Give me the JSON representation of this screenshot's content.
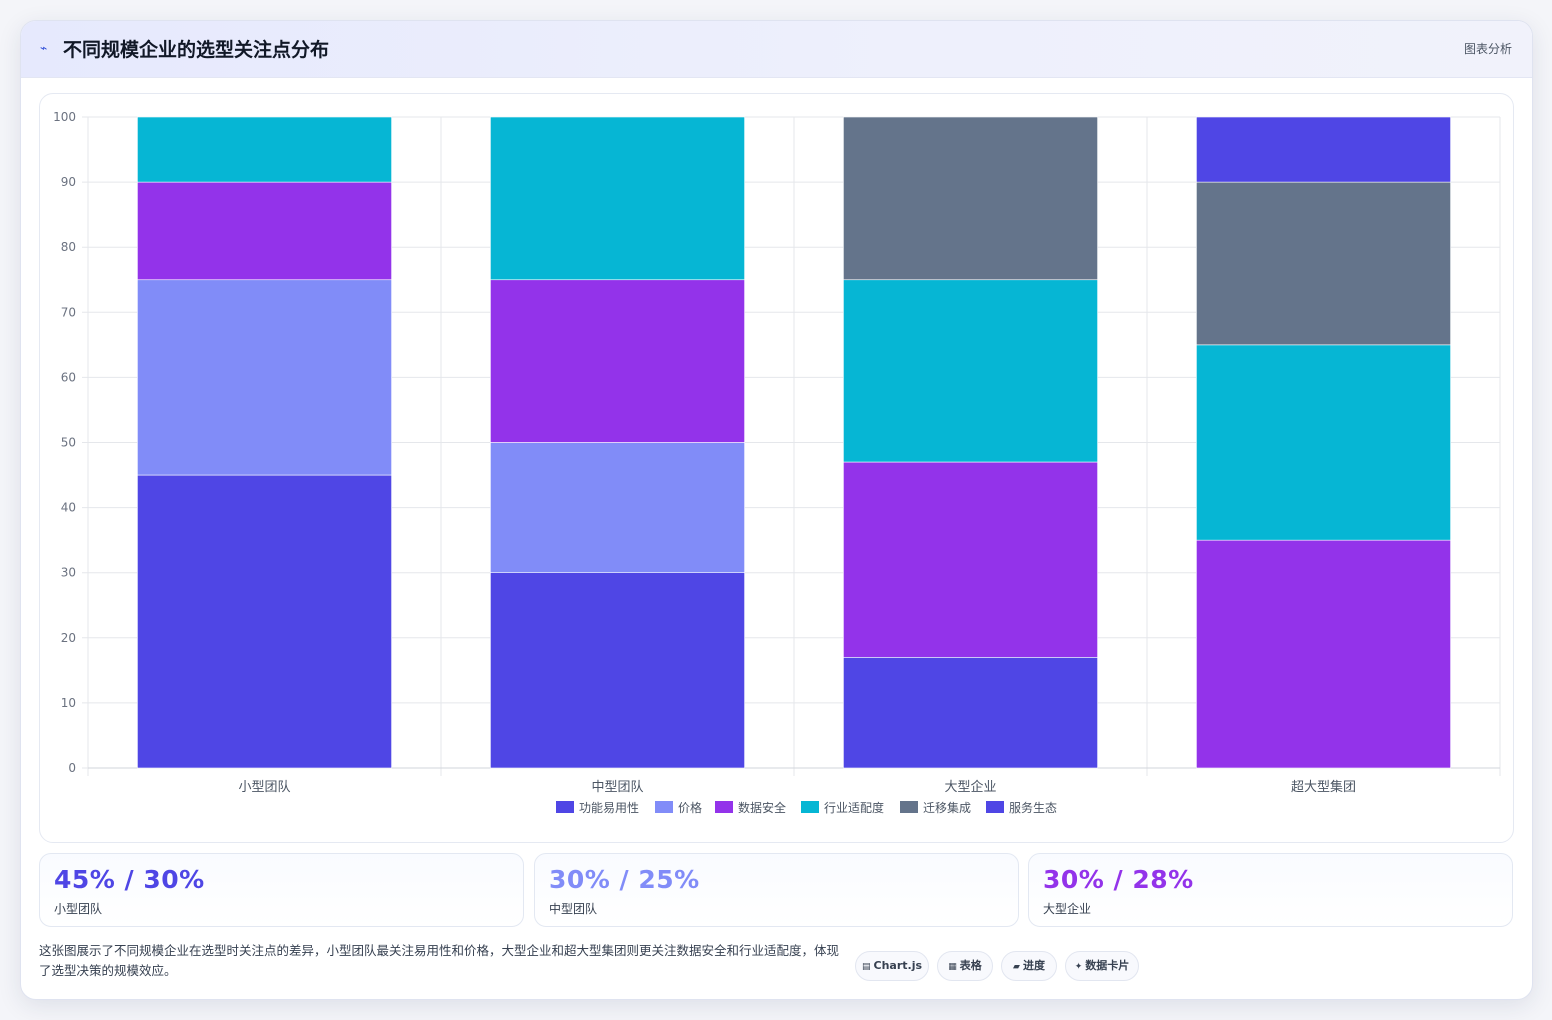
{
  "header": {
    "title": "不同规模企业的选型关注点分布",
    "tag": "图表分析",
    "icon": "line-chart-icon"
  },
  "chart_data": {
    "type": "bar",
    "stacked": true,
    "categories": [
      "小型团队",
      "中型团队",
      "大型企业",
      "超大型集团"
    ],
    "ylim": [
      0,
      100
    ],
    "yticks": [
      0,
      10,
      20,
      30,
      40,
      50,
      60,
      70,
      80,
      90,
      100
    ],
    "grid": true,
    "legend_position": "bottom",
    "series": [
      {
        "name": "功能易用性",
        "color": "#4f46e5",
        "values": [
          45,
          30,
          17,
          0
        ]
      },
      {
        "name": "价格",
        "color": "#818cf8",
        "values": [
          30,
          20,
          0,
          0
        ]
      },
      {
        "name": "数据安全",
        "color": "#9333ea",
        "values": [
          15,
          25,
          30,
          35
        ]
      },
      {
        "name": "行业适配度",
        "color": "#06b6d4",
        "values": [
          10,
          25,
          28,
          30
        ]
      },
      {
        "name": "迁移集成",
        "color": "#64748b",
        "values": [
          0,
          0,
          25,
          25
        ]
      },
      {
        "name": "服务生态",
        "color": "#4f46e5",
        "values": [
          0,
          0,
          0,
          10
        ]
      }
    ]
  },
  "stats": [
    {
      "value": "45% / 30%",
      "label": "小型团队",
      "color": "#4f46e5"
    },
    {
      "value": "30% / 25%",
      "label": "中型团队",
      "color": "#818cf8"
    },
    {
      "value": "30% / 28%",
      "label": "大型企业",
      "color": "#9333ea"
    }
  ],
  "description": "这张图展示了不同规模企业在选型时关注点的差异，小型团队最关注易用性和价格，大型企业和超大型集团则更关注数据安全和行业适配度，体现了选型决策的规模效应。",
  "chips": [
    {
      "icon": "chart-icon",
      "glyph": "▤",
      "label": "Chart.js"
    },
    {
      "icon": "table-icon",
      "glyph": "▦",
      "label": "表格"
    },
    {
      "icon": "progress-icon",
      "glyph": "▰",
      "label": "进度"
    },
    {
      "icon": "sparkle-icon",
      "glyph": "✦",
      "label": "数据卡片"
    }
  ]
}
